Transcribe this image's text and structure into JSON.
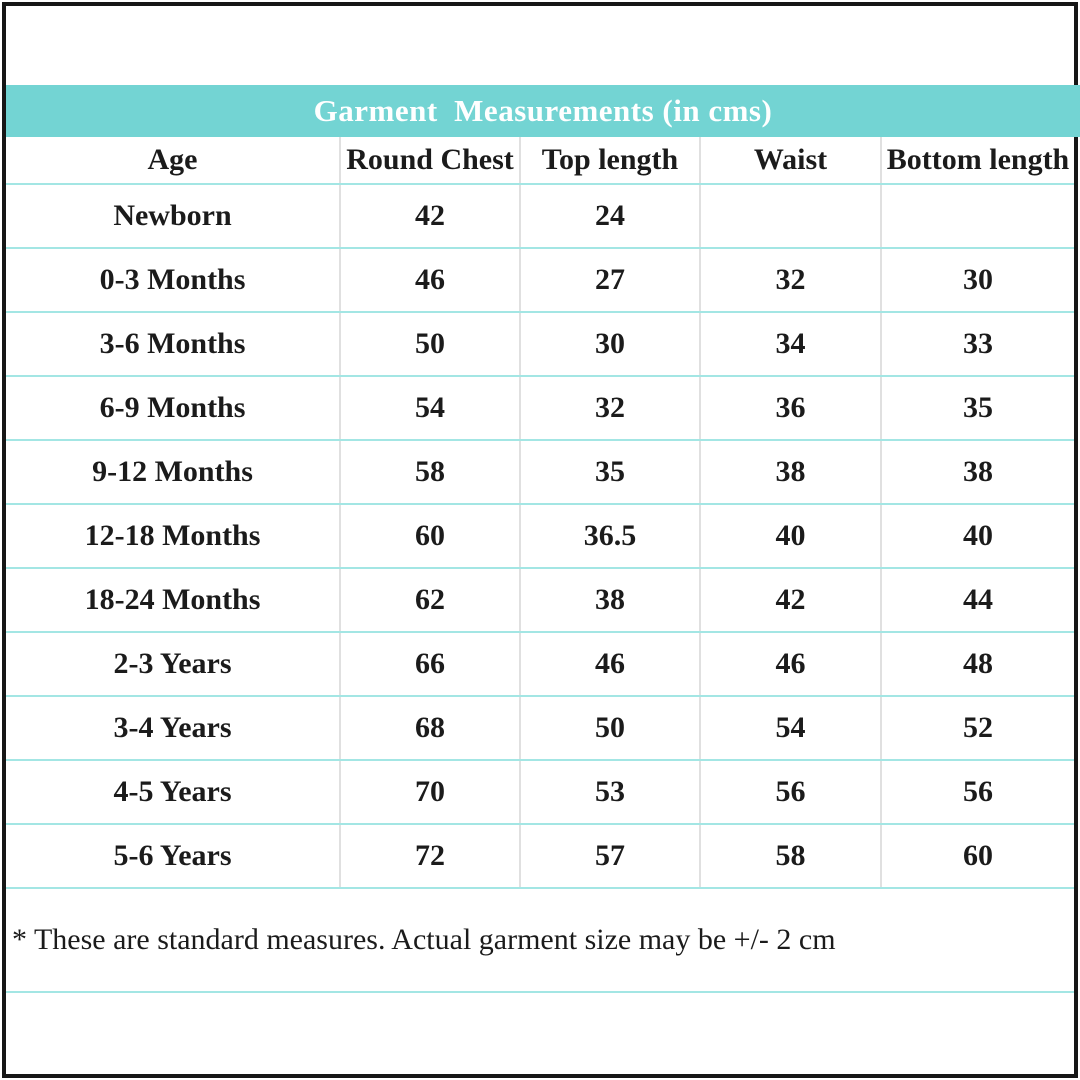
{
  "page": {
    "title": "Garment  Measurements (in cms)",
    "footnote": "* These are standard measures. Actual garment size may be +/- 2 cm"
  },
  "chart_data": {
    "type": "table",
    "title": "Garment  Measurements (in cms)",
    "units": "cms",
    "columns": [
      "Age",
      "Round Chest",
      "Top length",
      "Waist",
      "Bottom length"
    ],
    "rows": [
      [
        "Newborn",
        "42",
        "24",
        "",
        ""
      ],
      [
        "0-3 Months",
        "46",
        "27",
        "32",
        "30"
      ],
      [
        "3-6 Months",
        "50",
        "30",
        "34",
        "33"
      ],
      [
        "6-9 Months",
        "54",
        "32",
        "36",
        "35"
      ],
      [
        "9-12 Months",
        "58",
        "35",
        "38",
        "38"
      ],
      [
        "12-18 Months",
        "60",
        "36.5",
        "40",
        "40"
      ],
      [
        "18-24 Months",
        "62",
        "38",
        "42",
        "44"
      ],
      [
        "2-3 Years",
        "66",
        "46",
        "46",
        "48"
      ],
      [
        "3-4 Years",
        "68",
        "50",
        "54",
        "52"
      ],
      [
        "4-5 Years",
        "70",
        "53",
        "56",
        "56"
      ],
      [
        "5-6 Years",
        "72",
        "57",
        "58",
        "60"
      ]
    ],
    "footnote": "* These are standard measures. Actual garment size may be +/- 2 cm"
  },
  "colors": {
    "band_background": "#73d4d3",
    "band_text": "#ffffff",
    "row_separator": "#a3e6e4",
    "column_separator": "#e0e0e0",
    "frame_border": "#161616",
    "text": "#1b1b1b"
  }
}
